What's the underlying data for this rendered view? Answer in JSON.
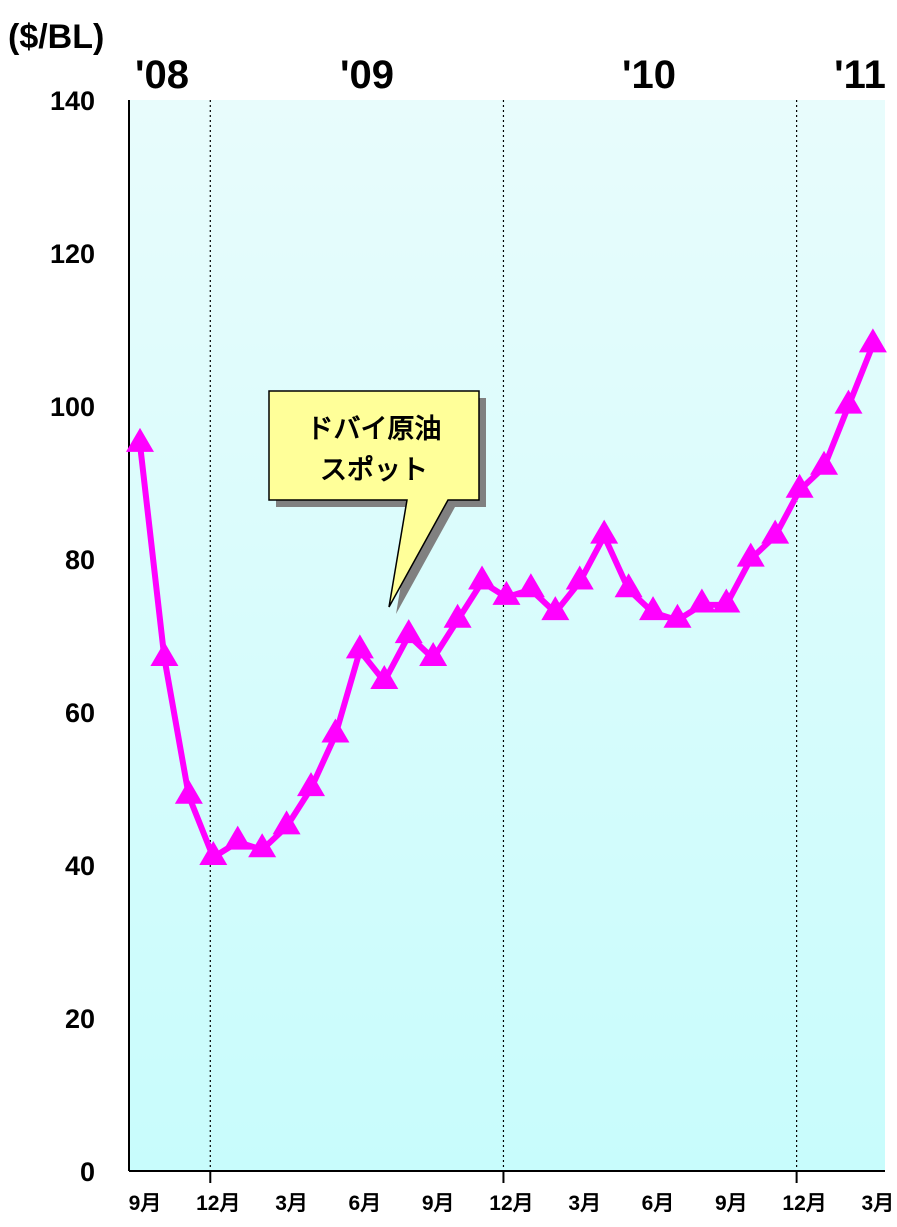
{
  "chart_data": {
    "type": "line",
    "title": "",
    "ylabel": "($/BL)",
    "xlabel": "",
    "ylim": [
      0,
      140
    ],
    "yticks": [
      "0",
      "20",
      "40",
      "60",
      "80",
      "100",
      "120",
      "140"
    ],
    "x_labels": [
      "9月",
      "12月",
      "3月",
      "6月",
      "9月",
      "12月",
      "3月",
      "6月",
      "9月",
      "12月",
      "3月"
    ],
    "year_labels": [
      "'08",
      "'09",
      "'10",
      "'11"
    ],
    "annotation": {
      "line1": "ドバイ原油",
      "line2": "スポット"
    },
    "colors": {
      "series": "#ff00ff",
      "plot_bg_top": "#e8fcfc",
      "plot_bg_bottom": "#c8fcfc"
    },
    "grid": "vertical dotted lines at year boundaries",
    "series": [
      {
        "name": "",
        "marker": "triangle",
        "months": [
          "2008-09",
          "2008-10",
          "2008-11",
          "2008-12",
          "2009-01",
          "2009-02",
          "2009-03",
          "2009-04",
          "2009-05",
          "2009-06",
          "2009-07",
          "2009-08",
          "2009-09",
          "2009-10",
          "2009-11",
          "2009-12",
          "2010-01",
          "2010-02",
          "2010-03",
          "2010-04",
          "2010-05",
          "2010-06",
          "2010-07",
          "2010-08",
          "2010-09",
          "2010-10",
          "2010-11",
          "2010-12",
          "2011-01",
          "2011-02",
          "2011-03"
        ],
        "values": [
          95,
          67,
          49,
          41,
          43,
          42,
          45,
          50,
          57,
          68,
          64,
          70,
          67,
          72,
          77,
          75,
          76,
          73,
          77,
          83,
          76,
          73,
          72,
          74,
          74,
          80,
          83,
          89,
          92,
          100,
          108
        ]
      }
    ]
  }
}
